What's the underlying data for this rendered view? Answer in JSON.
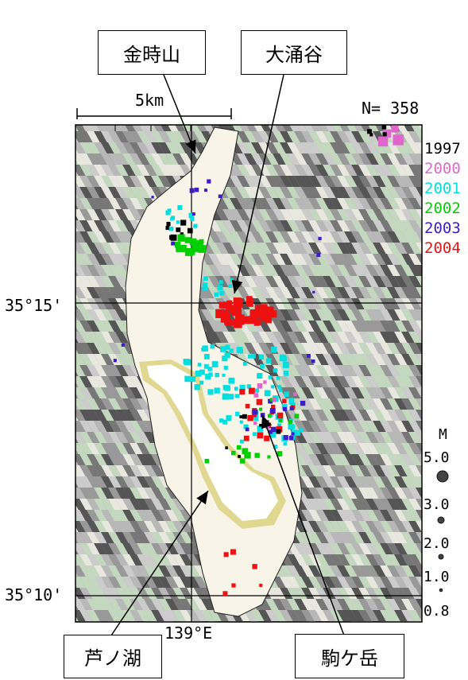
{
  "labels": {
    "kintoki": "金時山",
    "owakudani": "大涌谷",
    "ashinoko": "芦ノ湖",
    "komagatake": "駒ケ岳"
  },
  "scale_label": "5km",
  "count_label": "N= 358",
  "lat_labels": {
    "lat1515": "35°15'",
    "lat1510": "35°10'"
  },
  "lon_label": "139°E",
  "years": [
    {
      "label": "1997",
      "color": "#000000"
    },
    {
      "label": "2000",
      "color": "#e066cc"
    },
    {
      "label": "2001",
      "color": "#00e0e0"
    },
    {
      "label": "2002",
      "color": "#00d000"
    },
    {
      "label": "2003",
      "color": "#3c1ec8"
    },
    {
      "label": "2004",
      "color": "#ee1111"
    }
  ],
  "magnitude": {
    "title": "M",
    "scale": [
      "5.0",
      "3.0",
      "2.0",
      "1.0",
      "0.8"
    ]
  },
  "colors": {
    "land_dark": "#555555",
    "land_mid": "#999999",
    "land_light": "#cccccc",
    "land_green": "#c4d8c0",
    "lowland": "#f8f4e8",
    "lake": "#ffffff",
    "lake_shore": "#e0d890"
  }
}
